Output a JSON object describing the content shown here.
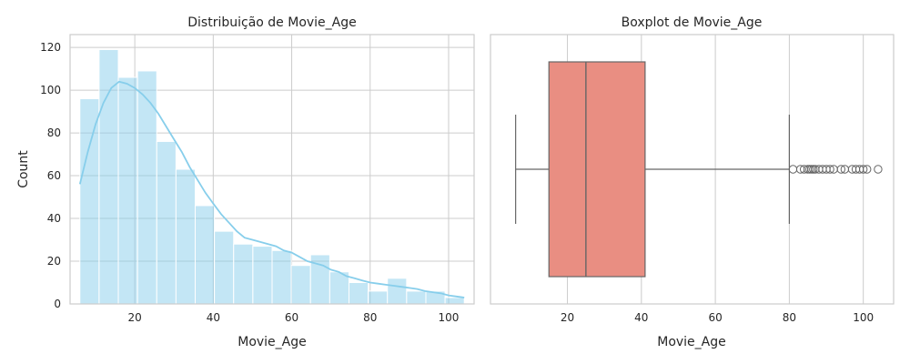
{
  "chart_data": [
    {
      "type": "bar",
      "title": "Distribuição de Movie_Age",
      "xlabel": "Movie_Age",
      "ylabel": "Count",
      "xlim": [
        3.5,
        106.5
      ],
      "ylim": [
        0,
        126
      ],
      "xticks": [
        20,
        40,
        60,
        80,
        100
      ],
      "yticks": [
        0,
        20,
        40,
        60,
        80,
        100,
        120
      ],
      "grid": true,
      "bar_color": "#87ceeb",
      "kde_color": "#87ceeb",
      "bins": [
        {
          "x0": 6.0,
          "x1": 10.9,
          "count": 96
        },
        {
          "x0": 10.9,
          "x1": 15.8,
          "count": 119
        },
        {
          "x0": 15.8,
          "x1": 20.7,
          "count": 106
        },
        {
          "x0": 20.7,
          "x1": 25.6,
          "count": 109
        },
        {
          "x0": 25.6,
          "x1": 30.5,
          "count": 76
        },
        {
          "x0": 30.5,
          "x1": 35.4,
          "count": 63
        },
        {
          "x0": 35.4,
          "x1": 40.3,
          "count": 46
        },
        {
          "x0": 40.3,
          "x1": 45.2,
          "count": 34
        },
        {
          "x0": 45.2,
          "x1": 50.1,
          "count": 28
        },
        {
          "x0": 50.1,
          "x1": 55.0,
          "count": 27
        },
        {
          "x0": 55.0,
          "x1": 59.9,
          "count": 25
        },
        {
          "x0": 59.9,
          "x1": 64.8,
          "count": 18
        },
        {
          "x0": 64.8,
          "x1": 69.7,
          "count": 23
        },
        {
          "x0": 69.7,
          "x1": 74.6,
          "count": 15
        },
        {
          "x0": 74.6,
          "x1": 79.5,
          "count": 10
        },
        {
          "x0": 79.5,
          "x1": 84.4,
          "count": 6
        },
        {
          "x0": 84.4,
          "x1": 89.3,
          "count": 12
        },
        {
          "x0": 89.3,
          "x1": 94.2,
          "count": 6
        },
        {
          "x0": 94.2,
          "x1": 99.1,
          "count": 6
        },
        {
          "x0": 99.1,
          "x1": 104.0,
          "count": 3
        }
      ],
      "kde": {
        "x": [
          6,
          8,
          10,
          12,
          14,
          16,
          18,
          20,
          22,
          24,
          26,
          28,
          30,
          32,
          34,
          36,
          38,
          40,
          42,
          44,
          46,
          48,
          50,
          52,
          54,
          56,
          58,
          60,
          62,
          64,
          66,
          68,
          70,
          72,
          74,
          76,
          78,
          80,
          82,
          84,
          86,
          88,
          90,
          92,
          94,
          96,
          98,
          100,
          102,
          104
        ],
        "y": [
          56,
          71,
          84,
          94,
          101,
          104,
          103,
          101,
          98,
          94,
          89,
          83,
          77,
          71,
          64,
          58,
          52,
          47,
          42,
          38,
          34,
          31,
          30,
          29,
          28,
          27,
          25,
          24,
          22,
          20,
          19,
          18,
          16,
          15,
          13,
          12,
          11,
          10,
          9.5,
          9,
          8.5,
          8,
          7.5,
          7,
          6,
          5.5,
          5,
          4,
          3.5,
          3
        ]
      }
    },
    {
      "type": "boxplot",
      "title": "Boxplot de Movie_Age",
      "xlabel": "Movie_Age",
      "xlim": [
        -0.8,
        108.2
      ],
      "xticks": [
        20,
        40,
        60,
        80,
        100
      ],
      "grid": true,
      "box_color": "#e98e82",
      "line_color": "#666666",
      "whisker_low": 6,
      "q1": 15,
      "median": 25,
      "q3": 41,
      "whisker_high": 80,
      "outliers": [
        81,
        83,
        84,
        85,
        85.5,
        86,
        86.5,
        87,
        88,
        89,
        90,
        91,
        92,
        94,
        95,
        97,
        98,
        99,
        100,
        101,
        104
      ]
    }
  ]
}
